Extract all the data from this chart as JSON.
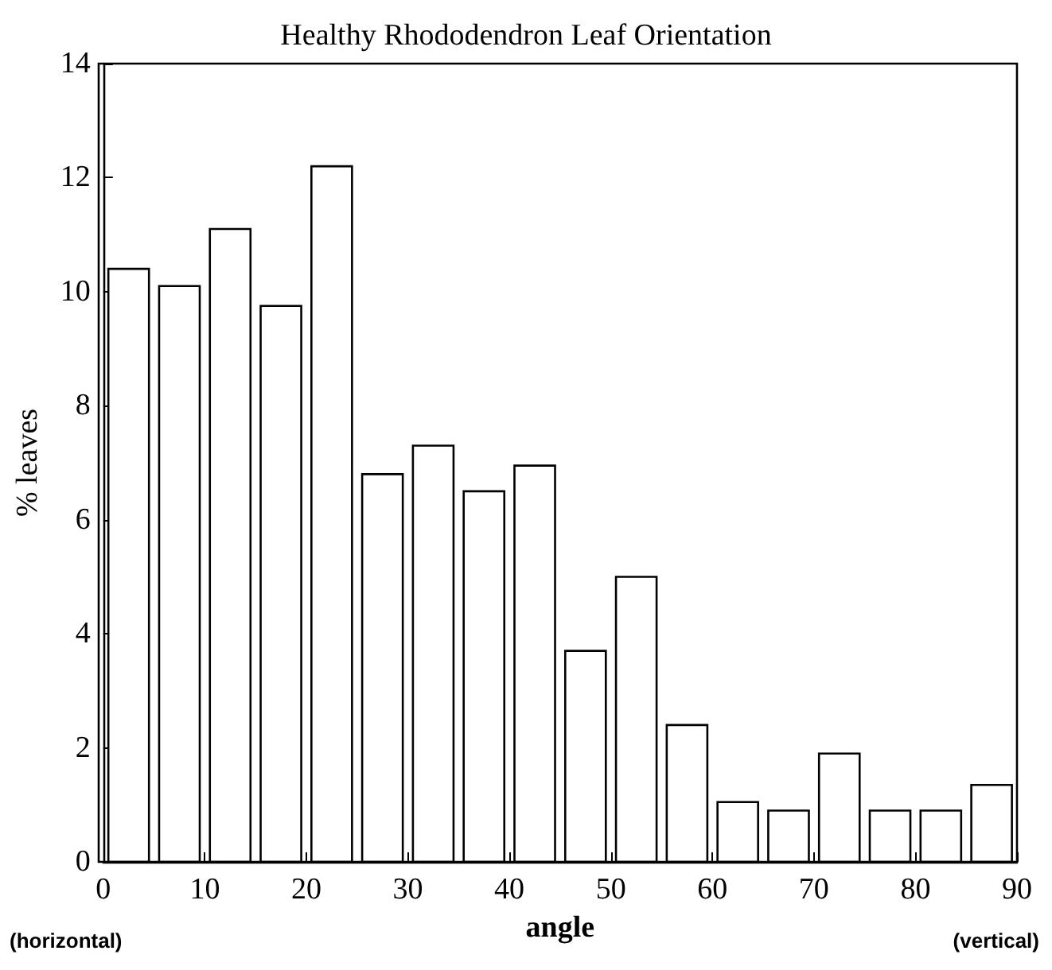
{
  "chart_data": {
    "type": "histogram",
    "title": "Healthy Rhododendron Leaf Orientation",
    "xlabel": "angle",
    "ylabel": "% leaves",
    "bins": [
      0,
      5,
      10,
      15,
      20,
      25,
      30,
      35,
      40,
      45,
      50,
      55,
      60,
      65,
      70,
      75,
      80,
      85,
      90
    ],
    "values": [
      10.4,
      10.1,
      11.1,
      9.75,
      12.2,
      6.8,
      7.3,
      6.5,
      6.95,
      3.7,
      5.0,
      2.4,
      1.05,
      0.9,
      1.9,
      0.9,
      0.9,
      1.35
    ],
    "color": "#ffffff",
    "xlim": [
      0,
      90
    ],
    "xticks": [
      0,
      10,
      20,
      30,
      40,
      50,
      60,
      70,
      80,
      90
    ],
    "ylim": [
      0,
      14
    ],
    "yticks": [
      0,
      2,
      4,
      6,
      8,
      10,
      12,
      14
    ],
    "grid": false,
    "annotations": [
      "(horizontal)",
      "(vertical)"
    ]
  }
}
